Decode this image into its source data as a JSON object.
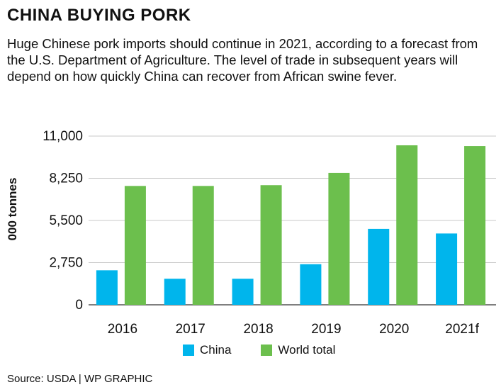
{
  "header": {
    "title": "CHINA BUYING PORK",
    "subtitle": "Huge Chinese pork imports should continue in 2021, according to a forecast from the U.S. Department of Agriculture. The level of trade in subsequent years will depend on how quickly China can recover from African swine fever."
  },
  "footer": {
    "source": "Source: USDA  |  WP GRAPHIC"
  },
  "chart_data": {
    "type": "bar",
    "categories": [
      "2016",
      "2017",
      "2018",
      "2019",
      "2020",
      "2021f"
    ],
    "series": [
      {
        "name": "China",
        "color": "#00b5ec",
        "values": [
          2250,
          1700,
          1700,
          2650,
          4950,
          4650
        ]
      },
      {
        "name": "World total",
        "color": "#6cbf4d",
        "values": [
          7750,
          7750,
          7800,
          8600,
          10400,
          10350
        ]
      }
    ],
    "ylabel": "000 tonnes",
    "xlabel": "",
    "ylim": [
      0,
      11000
    ],
    "yticks": [
      0,
      2750,
      5500,
      8250,
      11000
    ],
    "ytick_labels": [
      "0",
      "2,750",
      "5,500",
      "8,250",
      "11,000"
    ],
    "grid": true,
    "legend_position": "bottom"
  }
}
